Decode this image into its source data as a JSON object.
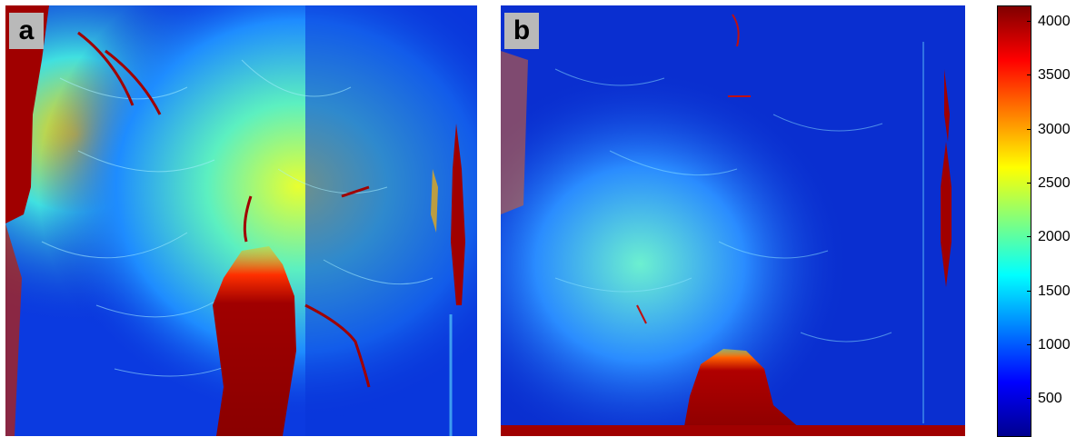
{
  "panels": [
    {
      "label": "a"
    },
    {
      "label": "b"
    }
  ],
  "colorbar": {
    "ticks": [
      "4000",
      "3500",
      "3000",
      "2500",
      "2000",
      "1500",
      "1000",
      "500"
    ],
    "tick_values": [
      4000,
      3500,
      3000,
      2500,
      2000,
      1500,
      1000,
      500
    ],
    "colormap": "jet",
    "colors": [
      "#800000",
      "#ff0000",
      "#ffff00",
      "#00ffff",
      "#0000ff",
      "#00008f"
    ]
  }
}
